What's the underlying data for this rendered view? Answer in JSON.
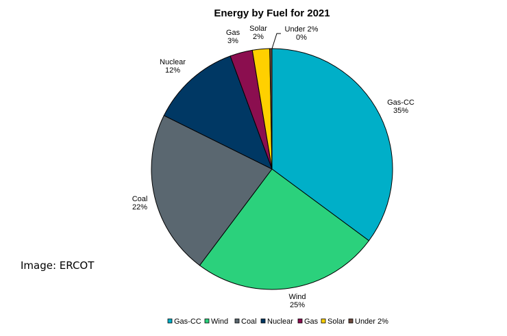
{
  "credit": "Image: ERCOT",
  "chart_data": {
    "type": "pie",
    "title": "Energy by Fuel for 2021",
    "legend_position": "bottom",
    "slices": [
      {
        "name": "Gas-CC",
        "value": 35,
        "label": "35%",
        "color": "#00afc8"
      },
      {
        "name": "Wind",
        "value": 25,
        "label": "25%",
        "color": "#2bd17c"
      },
      {
        "name": "Coal",
        "value": 22,
        "label": "22%",
        "color": "#5a6770"
      },
      {
        "name": "Nuclear",
        "value": 12,
        "label": "12%",
        "color": "#003864"
      },
      {
        "name": "Gas",
        "value": 3,
        "label": "3%",
        "color": "#8b0e4f"
      },
      {
        "name": "Solar",
        "value": 2.3,
        "label": "2%",
        "color": "#ffd000"
      },
      {
        "name": "Under 2%",
        "value": 0.3,
        "label": "0%",
        "color": "#6e4a3d"
      }
    ]
  }
}
